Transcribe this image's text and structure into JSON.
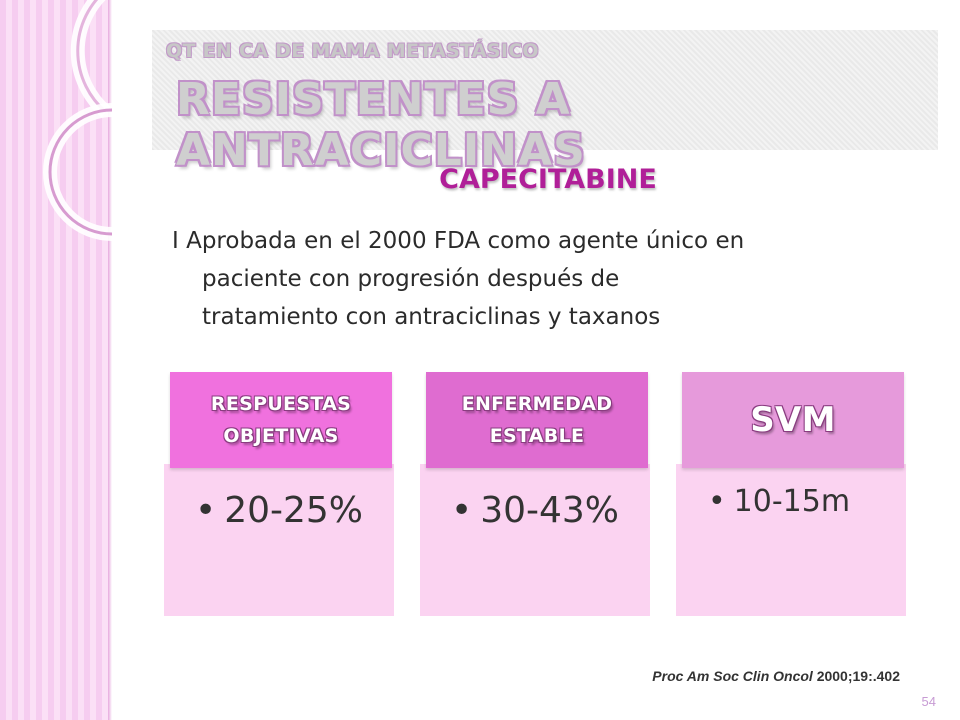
{
  "slide": {
    "pre_title": "QT EN CA DE MAMA METASTÁSICO",
    "title": "RESISTENTES A ANTRACICLINAS",
    "subtitle": "CAPECITABINE",
    "body_lines": [
      "I Aprobada  en el 2000 FDA como agente único en",
      "paciente con progresión después de",
      "tratamiento con antraciclinas y taxanos"
    ]
  },
  "cards": [
    {
      "header_lines": [
        "RESPUESTAS",
        "OBJETIVAS"
      ],
      "bullet": "•",
      "value": "20-25%"
    },
    {
      "header_lines": [
        "ENFERMEDAD",
        "ESTABLE"
      ],
      "bullet": "•",
      "value": "30-43%"
    },
    {
      "header_lines": [
        "SVM"
      ],
      "bullet": "•",
      "value": "10-15m"
    }
  ],
  "reference": {
    "italic_part": "Proc Am Soc Clin Oncol",
    "plain_part": " 2000;19:.402"
  },
  "page_number": "54",
  "colors": {
    "accent": "#b01f98",
    "left_band": "#f6cdf0",
    "card1_header": "#f071de",
    "card2_header": "#df6cd0",
    "card3_header": "#e69adb",
    "card_body": "#fbd3f1"
  }
}
